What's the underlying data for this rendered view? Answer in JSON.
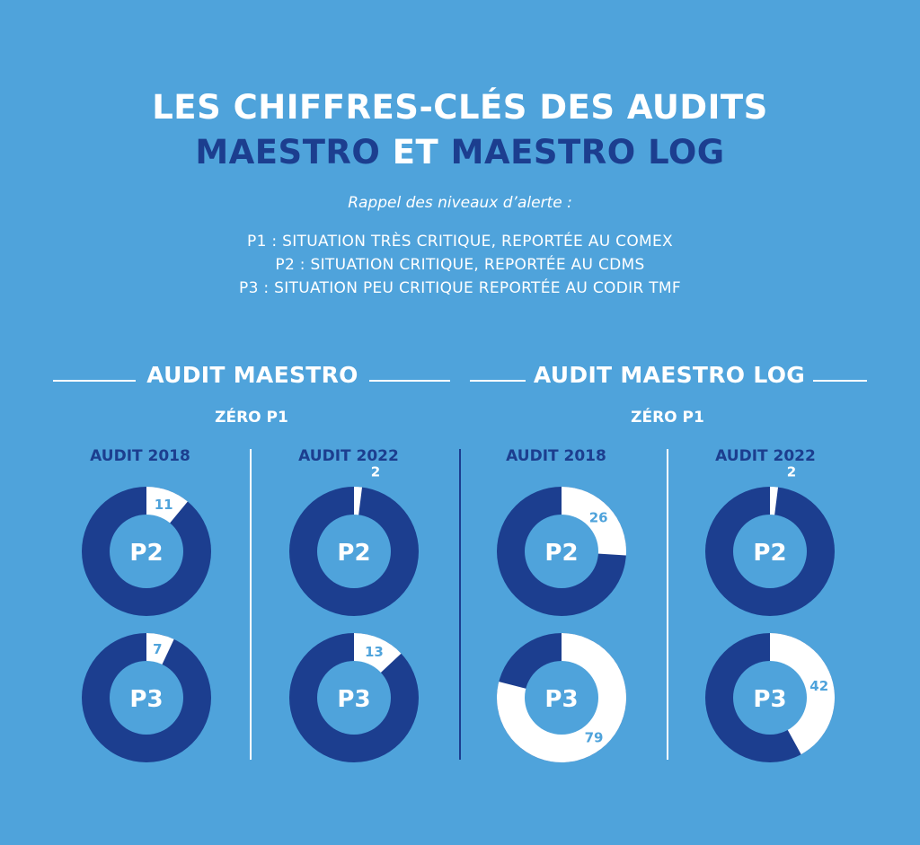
{
  "title": {
    "line1": "LES CHIFFRES-CLÉS DES AUDITS",
    "line2_part1": "MAESTRO",
    "line2_part2": " ET ",
    "line2_part3": "MAESTRO LOG"
  },
  "subtitle": "Rappel des niveaux d’alerte :",
  "levels": [
    "P1 : SITUATION TRÈS CRITIQUE, REPORTÉE AU COMEX",
    "P2 : SITUATION CRITIQUE, REPORTÉE AU CDMS",
    "P3 : SITUATION PEU CRITIQUE REPORTÉE AU CODIR TMF"
  ],
  "sections": [
    {
      "title": "AUDIT MAESTRO",
      "note": "ZÉRO P1",
      "years": [
        "AUDIT 2018",
        "AUDIT 2022"
      ]
    },
    {
      "title": "AUDIT MAESTRO LOG",
      "note": "ZÉRO P1",
      "years": [
        "AUDIT 2018",
        "AUDIT 2022"
      ]
    }
  ],
  "colors": {
    "background": "#4fa3db",
    "dark": "#1c3e8f",
    "light": "#ffffff"
  },
  "chart_data": [
    {
      "type": "pie",
      "title": "AUDIT 2018",
      "section": "AUDIT MAESTRO",
      "center_label": "P2",
      "values": [
        11
      ],
      "labels": [
        "11"
      ],
      "total_scale": 100
    },
    {
      "type": "pie",
      "title": "AUDIT 2018",
      "section": "AUDIT MAESTRO",
      "center_label": "P3",
      "values": [
        7
      ],
      "labels": [
        "7"
      ],
      "total_scale": 100
    },
    {
      "type": "pie",
      "title": "AUDIT 2022",
      "section": "AUDIT MAESTRO",
      "center_label": "P2",
      "values": [
        2
      ],
      "labels": [
        "2"
      ],
      "total_scale": 100
    },
    {
      "type": "pie",
      "title": "AUDIT 2022",
      "section": "AUDIT MAESTRO",
      "center_label": "P3",
      "values": [
        13
      ],
      "labels": [
        "13"
      ],
      "total_scale": 100
    },
    {
      "type": "pie",
      "title": "AUDIT 2018",
      "section": "AUDIT MAESTRO LOG",
      "center_label": "P2",
      "values": [
        26
      ],
      "labels": [
        "26"
      ],
      "total_scale": 100
    },
    {
      "type": "pie",
      "title": "AUDIT 2018",
      "section": "AUDIT MAESTRO LOG",
      "center_label": "P3",
      "values": [
        79
      ],
      "labels": [
        "79"
      ],
      "total_scale": 100
    },
    {
      "type": "pie",
      "title": "AUDIT 2022",
      "section": "AUDIT MAESTRO LOG",
      "center_label": "P2",
      "values": [
        2
      ],
      "labels": [
        "2"
      ],
      "total_scale": 100
    },
    {
      "type": "pie",
      "title": "AUDIT 2022",
      "section": "AUDIT MAESTRO LOG",
      "center_label": "P3",
      "values": [
        42
      ],
      "labels": [
        "42"
      ],
      "total_scale": 100
    }
  ]
}
